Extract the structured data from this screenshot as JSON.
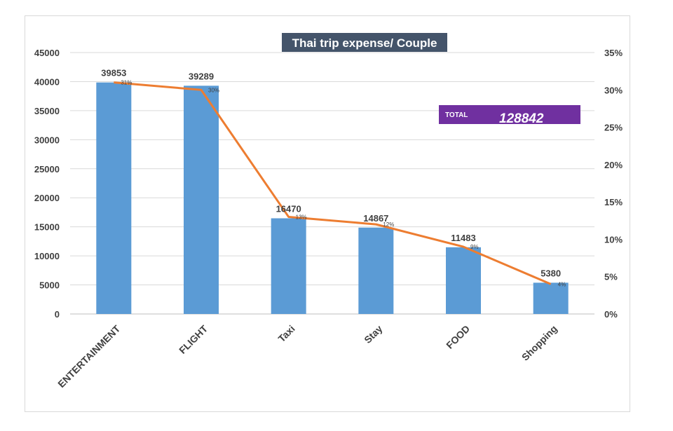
{
  "chart_data": {
    "type": "bar",
    "title": "Thai trip expense/ Couple",
    "categories": [
      "ENTERTAINMENT",
      "FLIGHT",
      "Taxi",
      "Stay",
      "FOOD",
      "Shopping"
    ],
    "values": [
      39853,
      39289,
      16470,
      14867,
      11483,
      5380
    ],
    "value_labels": [
      "39853",
      "39289",
      "16470",
      "14867",
      "11483",
      "5380"
    ],
    "line_series": {
      "axis": "secondary",
      "values": [
        31,
        30,
        13,
        12,
        9,
        4
      ],
      "labels": [
        "31%",
        "30%",
        "13%",
        "12%",
        "9%",
        "4%"
      ]
    },
    "ylim": [
      0,
      45000
    ],
    "y_ticks": [
      "0",
      "5000",
      "10000",
      "15000",
      "20000",
      "25000",
      "30000",
      "35000",
      "40000",
      "45000"
    ],
    "y2lim": [
      0,
      35
    ],
    "y2_ticks": [
      "0%",
      "5%",
      "10%",
      "15%",
      "20%",
      "25%",
      "30%",
      "35%"
    ],
    "grid": true,
    "xlabel": "",
    "ylabel": "",
    "colors": {
      "bar": "#5b9bd5",
      "line": "#ed7d31",
      "title_bg": "#44546a",
      "total_bg": "#7030a0",
      "grid": "#d9d9d9"
    }
  },
  "total_box": {
    "label": "TOTAL",
    "value": "128842"
  }
}
